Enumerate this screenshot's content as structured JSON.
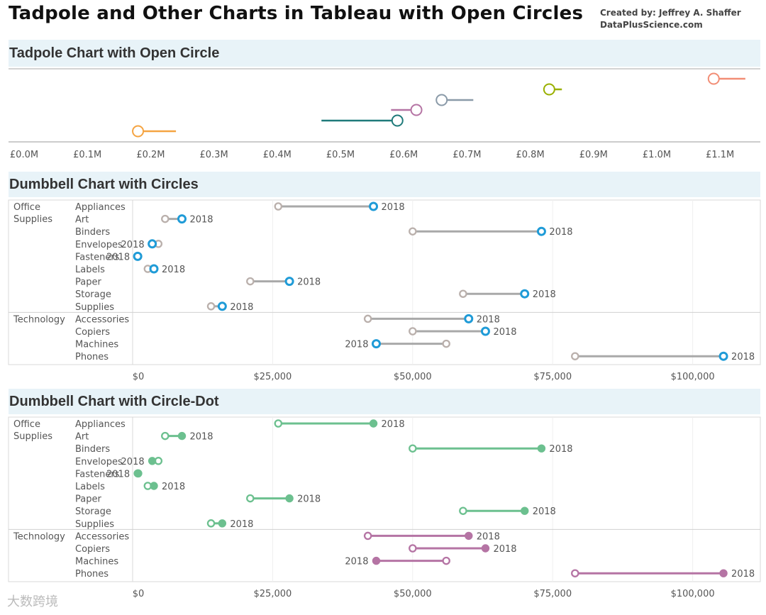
{
  "header": {
    "title": "Tadpole and Other Charts in Tableau with Open Circles",
    "credit_line1": "Created by: Jeffrey A. Shaffer",
    "credit_line2": "DataPlusScience.com"
  },
  "watermark": "大数跨境",
  "chart_data": [
    {
      "type": "scatter",
      "title": "Tadpole Chart with Open Circle",
      "x_ticks": [
        "£0.0M",
        "£0.1M",
        "£0.2M",
        "£0.3M",
        "£0.4M",
        "£0.5M",
        "£0.6M",
        "£0.7M",
        "£0.8M",
        "£0.9M",
        "£1.0M",
        "£1.1M"
      ],
      "xlim": [
        0,
        1.2
      ],
      "x_unit": "£M",
      "points": [
        {
          "value": 1.09,
          "tail_end": 1.14,
          "color": "#f28e76"
        },
        {
          "value": 0.83,
          "tail_end": 0.85,
          "color": "#9ab000"
        },
        {
          "value": 0.66,
          "tail_end": 0.71,
          "color": "#8a9aa8"
        },
        {
          "value": 0.62,
          "tail_end": 0.58,
          "color": "#b574a4"
        },
        {
          "value": 0.59,
          "tail_end": 0.47,
          "color": "#1f7a7a"
        },
        {
          "value": 0.18,
          "tail_end": 0.24,
          "color": "#f5a442"
        }
      ]
    },
    {
      "type": "dumbbell",
      "title": "Dumbbell Chart with Circles",
      "x_ticks": [
        "$0",
        "$25,000",
        "$50,000",
        "$75,000",
        "$100,000"
      ],
      "xlim": [
        0,
        111000
      ],
      "end_label": "2018",
      "colors": {
        "start": "#bab0ac",
        "end": "#1f9bd7",
        "bar": "#a9a9a9"
      },
      "groups": [
        {
          "category": "Office Supplies",
          "rows": [
            {
              "name": "Appliances",
              "start": 26000,
              "end": 43000
            },
            {
              "name": "Art",
              "start": 5800,
              "end": 8800
            },
            {
              "name": "Binders",
              "start": 50000,
              "end": 73000
            },
            {
              "name": "Envelopes",
              "start": 4600,
              "end": 3500
            },
            {
              "name": "Fasteners",
              "start": 1000,
              "end": 900
            },
            {
              "name": "Labels",
              "start": 2700,
              "end": 3800
            },
            {
              "name": "Paper",
              "start": 21000,
              "end": 28000
            },
            {
              "name": "Storage",
              "start": 59000,
              "end": 70000
            },
            {
              "name": "Supplies",
              "start": 14000,
              "end": 16000
            }
          ]
        },
        {
          "category": "Technology",
          "rows": [
            {
              "name": "Accessories",
              "start": 42000,
              "end": 60000
            },
            {
              "name": "Copiers",
              "start": 50000,
              "end": 63000
            },
            {
              "name": "Machines",
              "start": 56000,
              "end": 43500
            },
            {
              "name": "Phones",
              "start": 79000,
              "end": 105500
            }
          ]
        }
      ]
    },
    {
      "type": "dumbbell",
      "title": "Dumbbell Chart with Circle-Dot",
      "x_ticks": [
        "$0",
        "$25,000",
        "$50,000",
        "$75,000",
        "$100,000"
      ],
      "xlim": [
        0,
        111000
      ],
      "end_label": "2018",
      "colors": {
        "Office Supplies": "#6cc08f",
        "Technology": "#b574a4"
      },
      "groups": [
        {
          "category": "Office Supplies",
          "rows": [
            {
              "name": "Appliances",
              "start": 26000,
              "end": 43000
            },
            {
              "name": "Art",
              "start": 5800,
              "end": 8800
            },
            {
              "name": "Binders",
              "start": 50000,
              "end": 73000
            },
            {
              "name": "Envelopes",
              "start": 4600,
              "end": 3500
            },
            {
              "name": "Fasteners",
              "start": 1000,
              "end": 900
            },
            {
              "name": "Labels",
              "start": 2700,
              "end": 3800
            },
            {
              "name": "Paper",
              "start": 21000,
              "end": 28000
            },
            {
              "name": "Storage",
              "start": 59000,
              "end": 70000
            },
            {
              "name": "Supplies",
              "start": 14000,
              "end": 16000
            }
          ]
        },
        {
          "category": "Technology",
          "rows": [
            {
              "name": "Accessories",
              "start": 42000,
              "end": 60000
            },
            {
              "name": "Copiers",
              "start": 50000,
              "end": 63000
            },
            {
              "name": "Machines",
              "start": 56000,
              "end": 43500
            },
            {
              "name": "Phones",
              "start": 79000,
              "end": 105500
            }
          ]
        }
      ]
    }
  ]
}
